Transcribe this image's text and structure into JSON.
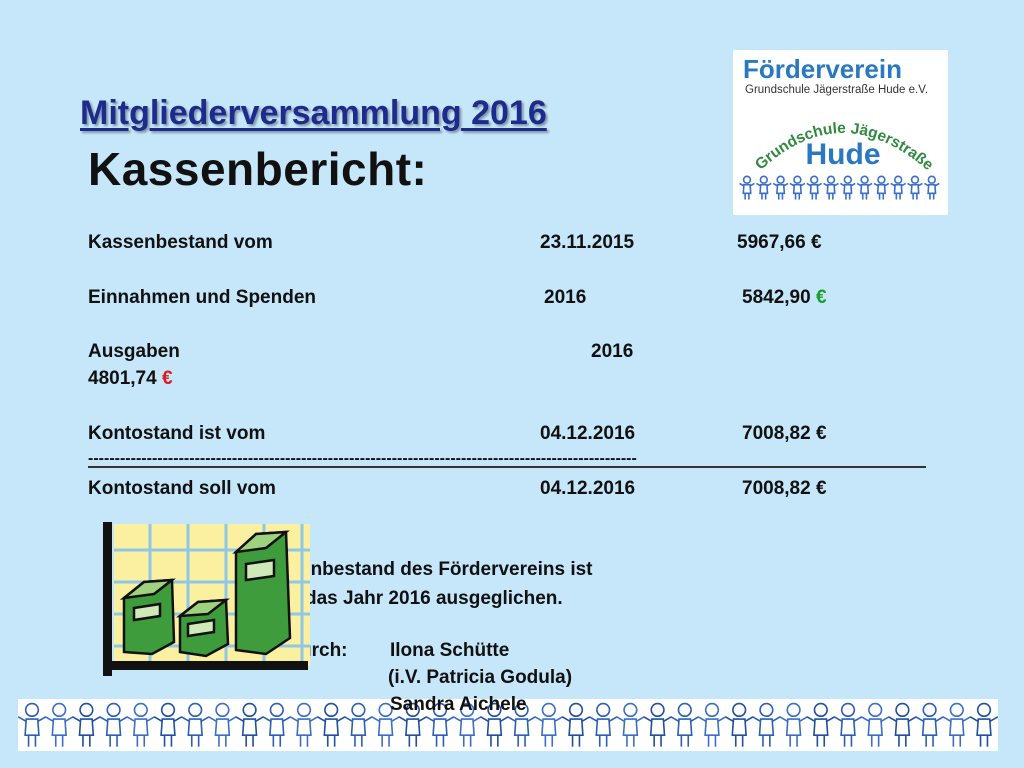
{
  "header": {
    "subtitle": "Mitgliederversammlung 2016",
    "title": "Kassenbericht:"
  },
  "logo": {
    "title": "Förderverein",
    "subtitle": "Grundschule Jägerstraße Hude e.V.",
    "arc_text": "Grundschule Jägerstraße",
    "town": "Hude"
  },
  "report": {
    "rows": [
      {
        "label": "Kassenbestand vom",
        "date": "23.11.2015",
        "amount": "5967,66",
        "currency": "€"
      },
      {
        "label": "Einnahmen und Spenden",
        "date": "2016",
        "amount": "5842,90",
        "currency": "€"
      },
      {
        "label": "Ausgaben",
        "date": "2016",
        "amount": "4801,74",
        "currency": "€"
      },
      {
        "label": "Kontostand ist  vom",
        "date": "04.12.2016",
        "amount": "7008,82",
        "currency": "€"
      },
      {
        "label": "Kontostand soll vom",
        "date": "04.12.2016",
        "amount": "7008,82",
        "currency": "€"
      }
    ],
    "separator": "-------------------------------------------------------------------------------------------------------"
  },
  "statement": {
    "line1": "enbestand des Fördervereins ist",
    "line2": "das Jahr 2016 ausgeglichen."
  },
  "auditors": {
    "label": "urch:",
    "names": [
      "Ilona Schütte",
      "(i.V. Patricia Godula)",
      "Sandra Aichele"
    ]
  },
  "colors": {
    "background": "#c6e6fa",
    "subtitle": "#1d2b8f",
    "income_euro": "#16a02a",
    "expense_euro": "#e01818",
    "logo_blue": "#2a78bf"
  },
  "icons": {
    "chart": "money-bar-chart-clipart",
    "children_band": "children-holding-hands-icon"
  }
}
